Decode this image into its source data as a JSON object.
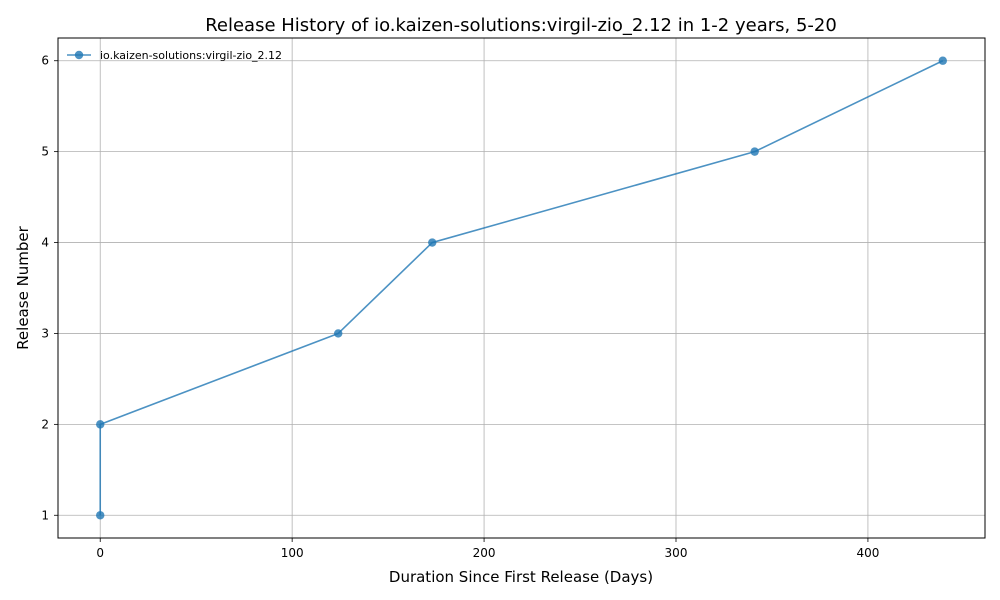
{
  "chart_data": {
    "type": "line",
    "title": "Release History of io.kaizen-solutions:virgil-zio_2.12 in 1-2 years, 5-20",
    "xlabel": "Duration Since First Release (Days)",
    "ylabel": "Release Number",
    "xlim": [
      -22,
      461
    ],
    "ylim": [
      0.75,
      6.25
    ],
    "xticks": [
      0,
      100,
      200,
      300,
      400
    ],
    "yticks": [
      1,
      2,
      3,
      4,
      5,
      6
    ],
    "grid": true,
    "legend_position": "top-left",
    "series": [
      {
        "name": "io.kaizen-solutions:virgil-zio_2.12",
        "color": "#1f77b4",
        "x": [
          0,
          0,
          124,
          173,
          341,
          439
        ],
        "y": [
          1,
          2,
          3,
          4,
          5,
          6
        ]
      }
    ]
  }
}
